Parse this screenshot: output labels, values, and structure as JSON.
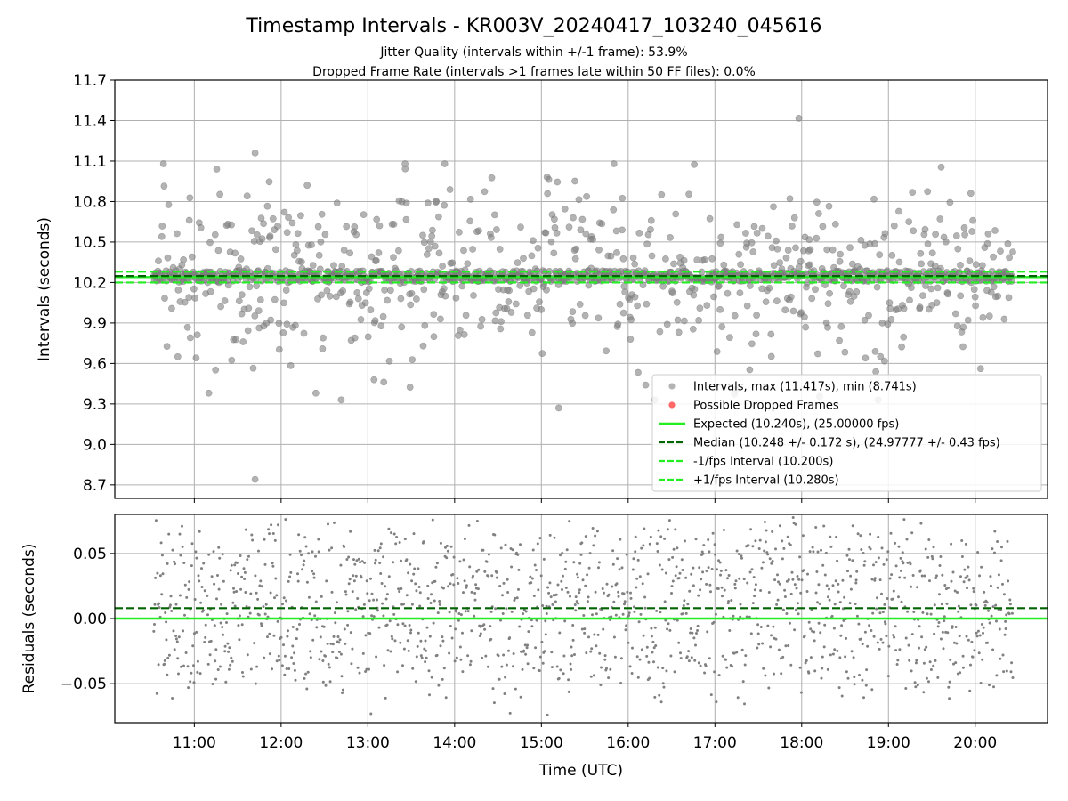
{
  "figure": {
    "title": "Timestamp Intervals - KR003V_20240417_103240_045616",
    "subtitle_line1": "Jitter Quality (intervals within +/-1 frame): 53.9%",
    "subtitle_line2": "Dropped Frame Rate (intervals >1 frames late within 50 FF files): 0.0%"
  },
  "colors": {
    "intervals": "#808080",
    "dropped": "#ff4d4d",
    "expected": "#22ee22",
    "median": "#006400",
    "grid": "#b0b0b0"
  },
  "chart_data": [
    {
      "type": "scatter",
      "panel": "intervals",
      "xlabel": "",
      "ylabel": "Intervals (seconds)",
      "xlim": [
        "10:05",
        "20:50"
      ],
      "ylim": [
        8.6,
        11.7
      ],
      "yticks": [
        8.7,
        9.0,
        9.3,
        9.6,
        9.9,
        10.2,
        10.5,
        10.8,
        11.1,
        11.4,
        11.7
      ],
      "ytick_labels": [
        "8.7",
        "9.0",
        "9.3",
        "9.6",
        "9.9",
        "10.2",
        "10.5",
        "10.8",
        "11.1",
        "11.4",
        "11.7"
      ],
      "x_range": [
        "10:32",
        "20:26"
      ],
      "series": [
        {
          "name": "Intervals, max (11.417s), min (8.741s)",
          "kind": "points",
          "max": 11.417,
          "min": 8.741,
          "center": 10.248,
          "core_half_width": 0.04,
          "spread": 0.33
        },
        {
          "name": "Possible Dropped Frames",
          "kind": "points",
          "values": []
        },
        {
          "name": "Expected (10.240s), (25.00000 fps)",
          "kind": "hline",
          "y": 10.24
        },
        {
          "name": "Median (10.248 +/- 0.172 s), (24.97777 +/- 0.43 fps)",
          "kind": "hline",
          "y": 10.248
        },
        {
          "name": "-1/fps Interval (10.200s)",
          "kind": "hline",
          "y": 10.2
        },
        {
          "name": "+1/fps Interval (10.280s)",
          "kind": "hline",
          "y": 10.28
        }
      ],
      "outliers": [
        {
          "x": "11:42",
          "y": 8.741
        },
        {
          "x": "17:58",
          "y": 11.417
        },
        {
          "x": "11:42",
          "y": 11.16
        },
        {
          "x": "15:12",
          "y": 9.27
        },
        {
          "x": "12:24",
          "y": 9.38
        },
        {
          "x": "11:10",
          "y": 9.38
        }
      ],
      "legend": {
        "placement": "lower right",
        "entries": [
          "Intervals, max (11.417s), min (8.741s)",
          "Possible Dropped Frames",
          "Expected (10.240s), (25.00000 fps)",
          "Median (10.248 +/- 0.172 s), (24.97777 +/- 0.43 fps)",
          "-1/fps Interval (10.200s)",
          "+1/fps Interval (10.280s)"
        ]
      },
      "grid": true
    },
    {
      "type": "scatter",
      "panel": "residuals",
      "xlabel": "Time (UTC)",
      "ylabel": "Residuals (seconds)",
      "xlim": [
        "10:05",
        "20:50"
      ],
      "ylim": [
        -0.08,
        0.08
      ],
      "yticks": [
        -0.05,
        0.0,
        0.05
      ],
      "ytick_labels": [
        "−0.05",
        "0.00",
        "0.05"
      ],
      "xticks": [
        "11:00",
        "12:00",
        "13:00",
        "14:00",
        "15:00",
        "16:00",
        "17:00",
        "18:00",
        "19:00",
        "20:00"
      ],
      "x_range": [
        "10:32",
        "20:26"
      ],
      "series": [
        {
          "name": "Residuals",
          "kind": "points",
          "center": 0.008,
          "spread": 0.045
        },
        {
          "name": "Expected",
          "kind": "hline",
          "y": 0.0
        },
        {
          "name": "Median",
          "kind": "hline",
          "y": 0.008
        }
      ],
      "grid": true
    }
  ]
}
